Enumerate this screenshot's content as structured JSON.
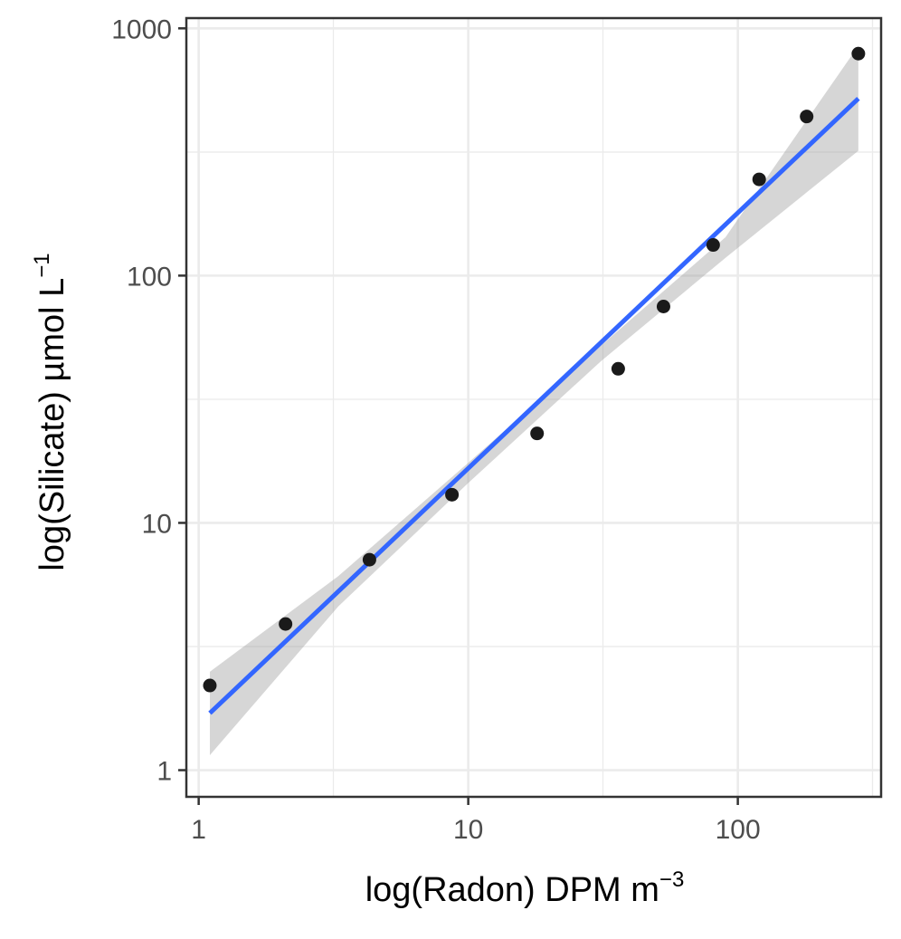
{
  "chart_data": {
    "type": "scatter",
    "x_scale": "log",
    "y_scale": "log",
    "xlabel": {
      "prefix": "log(Radon) DPM m",
      "superscript": "−3"
    },
    "ylabel": {
      "prefix": "log(Silicate) µmol L",
      "superscript": "−1"
    },
    "xlim": [
      0.9,
      340
    ],
    "ylim": [
      0.78,
      1100
    ],
    "x_ticks": [
      {
        "value": 1,
        "label": "1"
      },
      {
        "value": 10,
        "label": "10"
      },
      {
        "value": 100,
        "label": "100"
      }
    ],
    "y_ticks": [
      {
        "value": 1,
        "label": "1"
      },
      {
        "value": 10,
        "label": "10"
      },
      {
        "value": 100,
        "label": "100"
      },
      {
        "value": 1000,
        "label": "1000"
      }
    ],
    "x_minor_gridlines": [
      3.16,
      31.6,
      316
    ],
    "y_minor_gridlines": [
      3.16,
      31.6,
      316
    ],
    "grid": true,
    "points": {
      "x": [
        1.1,
        2.1,
        4.3,
        8.7,
        18,
        36,
        53,
        81,
        120,
        180,
        280
      ],
      "y": [
        2.2,
        3.9,
        7.1,
        13,
        23,
        42,
        75,
        133,
        245,
        440,
        790
      ]
    },
    "fit": {
      "method": "linear regression on log-log scale",
      "x": [
        1.1,
        280
      ],
      "y": [
        1.7,
        520
      ]
    },
    "confidence_band": {
      "x": [
        1.1,
        3.3,
        10,
        31,
        90,
        280
      ],
      "lower": [
        1.15,
        4.6,
        14.5,
        45,
        118,
        320
      ],
      "upper": [
        2.5,
        6.1,
        17.5,
        52,
        143,
        850
      ]
    },
    "colors": {
      "points": "#1a1a1a",
      "fit_line": "#3366ff",
      "confidence_band": "#999999",
      "grid": "#ebebeb",
      "panel_border": "#333333"
    }
  }
}
